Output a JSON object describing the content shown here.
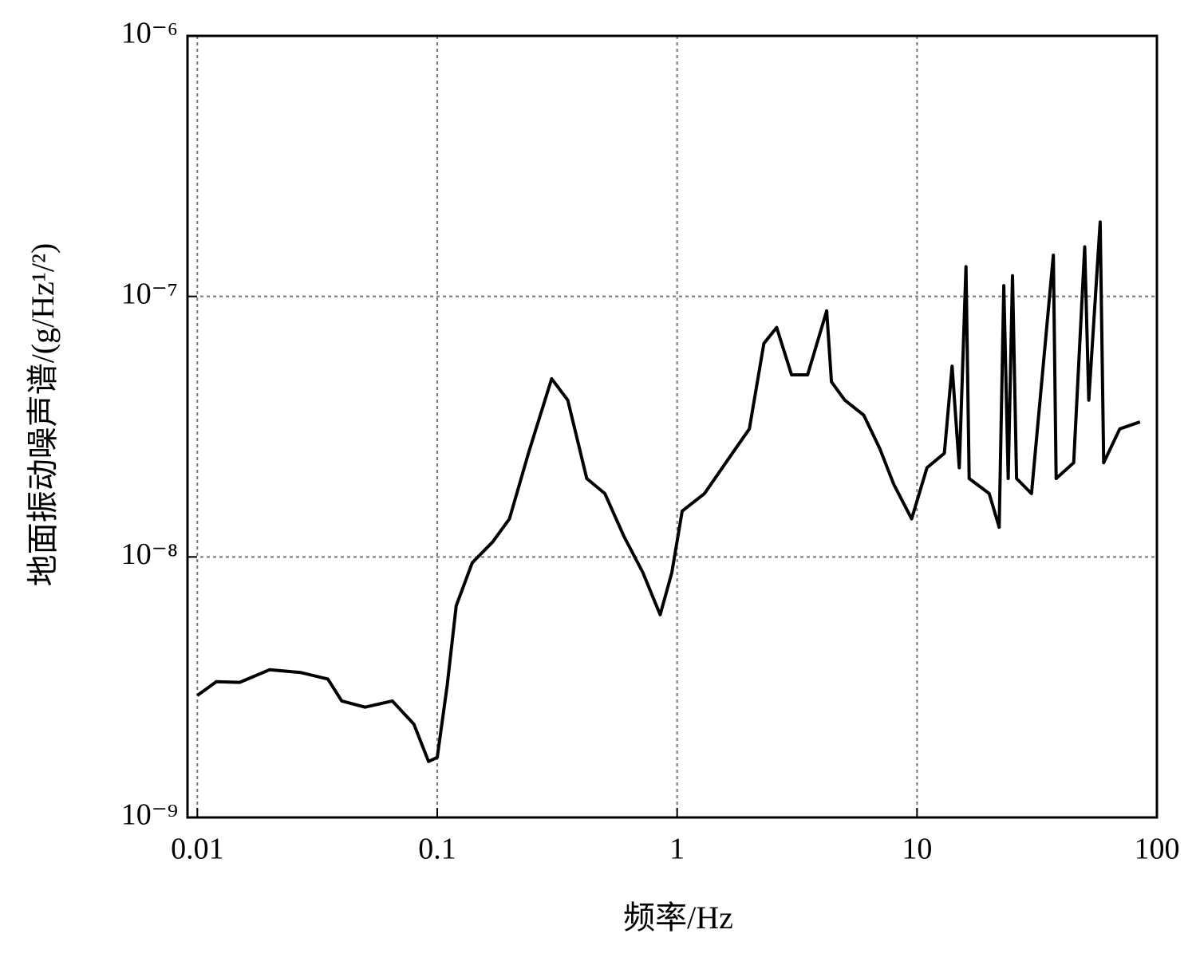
{
  "chart_data": {
    "type": "line",
    "x_label": "频率/Hz",
    "y_label": "地面振动噪声谱/(g/Hz¹/²)",
    "log_x": true,
    "log_y": true,
    "grid": true,
    "color": "#000000",
    "xlim": [
      0.0091,
      100
    ],
    "ylim": [
      1e-09,
      1e-06
    ],
    "xticks": [
      0.01,
      0.1,
      1,
      10,
      100
    ],
    "yticks": [
      {
        "value": 1e-09,
        "label": "10⁻⁹"
      },
      {
        "value": 1e-08,
        "label": "10⁻⁸"
      },
      {
        "value": 1e-07,
        "label": "10⁻⁷"
      },
      {
        "value": 1e-06,
        "label": "10⁻⁶"
      }
    ],
    "x": [
      0.01,
      0.012,
      0.015,
      0.02,
      0.027,
      0.035,
      0.04,
      0.05,
      0.065,
      0.08,
      0.092,
      0.1,
      0.11,
      0.12,
      0.14,
      0.17,
      0.2,
      0.24,
      0.3,
      0.35,
      0.42,
      0.5,
      0.6,
      0.72,
      0.85,
      0.95,
      1.05,
      1.3,
      1.7,
      2.0,
      2.3,
      2.6,
      3.0,
      3.5,
      4.2,
      4.4,
      5,
      6,
      7,
      8,
      9.5,
      11,
      13,
      14,
      15,
      16,
      16.5,
      20,
      22,
      23,
      24,
      25,
      26,
      30,
      37,
      38,
      45,
      50,
      52,
      58,
      60,
      70,
      85
    ],
    "values": [
      2.94e-09,
      3.32e-09,
      3.3e-09,
      3.69e-09,
      3.6e-09,
      3.4e-09,
      2.8e-09,
      2.65e-09,
      2.8e-09,
      2.28e-09,
      1.64e-09,
      1.7e-09,
      3.2e-09,
      6.5e-09,
      9.5e-09,
      1.14e-08,
      1.4e-08,
      2.5e-08,
      4.83e-08,
      4e-08,
      2e-08,
      1.75e-08,
      1.2e-08,
      8.7e-09,
      6e-09,
      8.7e-09,
      1.5e-08,
      1.75e-08,
      2.5e-08,
      3.1e-08,
      6.6e-08,
      7.6e-08,
      5e-08,
      5e-08,
      8.8e-08,
      4.7e-08,
      4e-08,
      3.5e-08,
      2.6e-08,
      1.9e-08,
      1.4e-08,
      2.2e-08,
      2.5e-08,
      5.4e-08,
      2.2e-08,
      1.3e-07,
      2e-08,
      1.75e-08,
      1.3e-08,
      1.1e-07,
      2e-08,
      1.2e-07,
      2e-08,
      1.75e-08,
      1.44e-07,
      2e-08,
      2.3e-08,
      1.55e-07,
      4e-08,
      1.93e-07,
      2.3e-08,
      3.1e-08,
      3.3e-08
    ]
  }
}
